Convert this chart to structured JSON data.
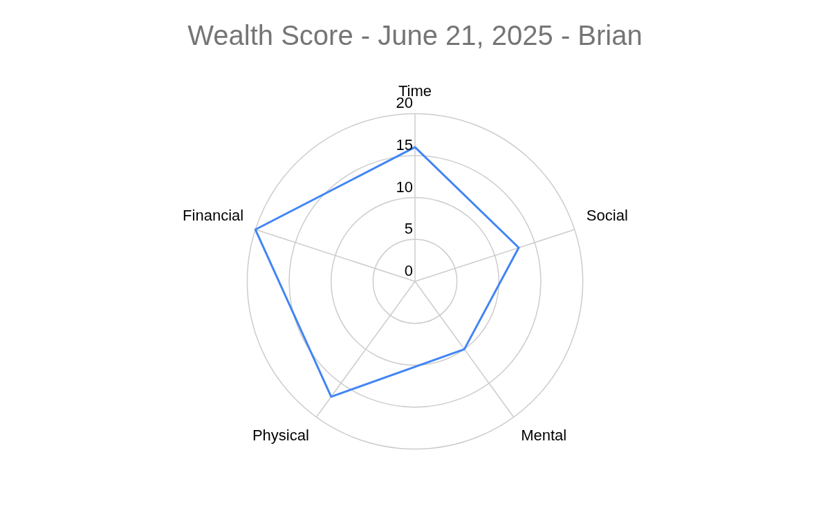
{
  "chart_data": {
    "type": "radar",
    "title": "Wealth Score - June 21, 2025 - Brian",
    "categories": [
      "Time",
      "Social",
      "Mental",
      "Physical",
      "Financial"
    ],
    "series": [
      {
        "color": "#4285f4",
        "values": [
          16,
          13,
          10,
          17,
          20
        ]
      }
    ],
    "ylim": [
      0,
      20
    ],
    "yticks": [
      0,
      5,
      10,
      15,
      20
    ],
    "grid": true,
    "legend": false,
    "marker": "none"
  }
}
